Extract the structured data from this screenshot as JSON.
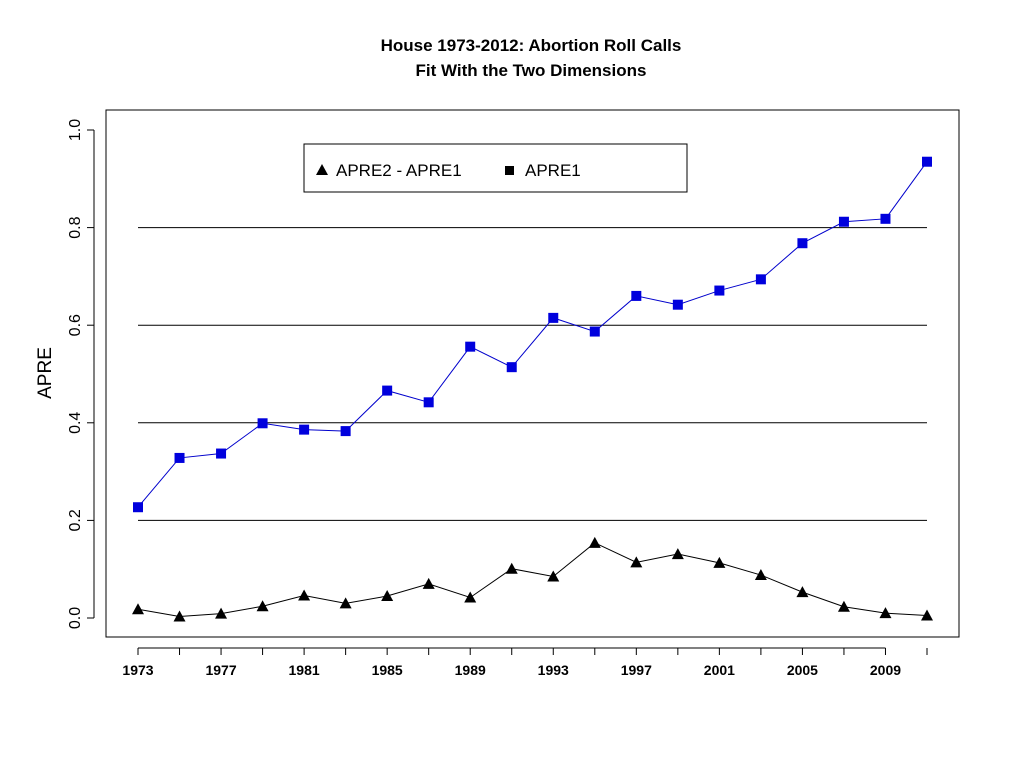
{
  "chart_data": {
    "type": "line",
    "title": "House 1973-2012: Abortion Roll Calls",
    "subtitle": "Fit With the Two Dimensions",
    "xlabel": "",
    "ylabel": "APRE",
    "xlim": [
      1973,
      2011
    ],
    "ylim": [
      0.0,
      1.0
    ],
    "x_ticks": [
      1973,
      1977,
      1981,
      1985,
      1989,
      1993,
      1997,
      2001,
      2005,
      2009
    ],
    "y_ticks": [
      "0.0",
      "0.2",
      "0.4",
      "0.6",
      "0.8",
      "1.0"
    ],
    "gridlines_y": [
      0.2,
      0.4,
      0.6,
      0.8
    ],
    "legend_position": "top-center",
    "x": [
      1973,
      1975,
      1977,
      1979,
      1981,
      1983,
      1985,
      1987,
      1989,
      1991,
      1993,
      1995,
      1997,
      1999,
      2001,
      2003,
      2005,
      2007,
      2009,
      2011
    ],
    "series": [
      {
        "name": "APRE2 - APRE1",
        "marker": "triangle",
        "line_color": "#000000",
        "marker_color": "#000000",
        "values": [
          0.018,
          0.003,
          0.009,
          0.024,
          0.046,
          0.03,
          0.045,
          0.07,
          0.042,
          0.101,
          0.085,
          0.154,
          0.114,
          0.131,
          0.113,
          0.088,
          0.053,
          0.023,
          0.01,
          0.005
        ]
      },
      {
        "name": "APRE1",
        "marker": "square",
        "line_color": "#0000cc",
        "marker_color": "#0000dd",
        "values": [
          0.227,
          0.328,
          0.337,
          0.399,
          0.386,
          0.383,
          0.466,
          0.442,
          0.556,
          0.514,
          0.615,
          0.587,
          0.66,
          0.642,
          0.671,
          0.694,
          0.768,
          0.812,
          0.818,
          0.935
        ]
      }
    ]
  }
}
